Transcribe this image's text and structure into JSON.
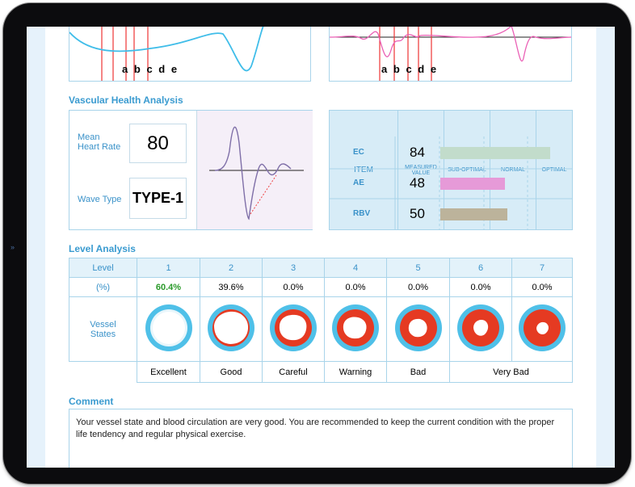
{
  "waveform_markers": [
    "a",
    "b",
    "c",
    "d",
    "e"
  ],
  "vascular": {
    "title": "Vascular Health Analysis",
    "mean_label": "Mean\nHeart Rate",
    "mean_value": "80",
    "wave_label": "Wave Type",
    "wave_value": "TYPE-1"
  },
  "items_table": {
    "headers": [
      "ITEM",
      "MEASURED VALUE",
      "SUB-OPTIMAL",
      "NORMAL",
      "OPTIMAL"
    ],
    "rows": [
      {
        "item": "EC",
        "value": "84",
        "color": "#c2dccb",
        "level_fraction": 0.97
      },
      {
        "item": "AE",
        "value": "48",
        "color": "#e69ad8",
        "level_fraction": 0.57
      },
      {
        "item": "RBV",
        "value": "50",
        "color": "#bcb39b",
        "level_fraction": 0.59
      }
    ]
  },
  "level": {
    "title": "Level Analysis",
    "row_labels": {
      "level": "Level",
      "pct": "(%)",
      "vessel": "Vessel\nStates"
    },
    "levels": [
      "1",
      "2",
      "3",
      "4",
      "5",
      "6",
      "7"
    ],
    "percents": [
      "60.4%",
      "39.6%",
      "0.0%",
      "0.0%",
      "0.0%",
      "0.0%",
      "0.0%"
    ],
    "highlight_color": "#2a9a2a",
    "states": [
      "Excellent",
      "Good",
      "Careful",
      "Warning",
      "Bad",
      "Very Bad"
    ]
  },
  "comment": {
    "title": "Comment",
    "text": "Your vessel state and blood circulation are very good. You are recommended to keep the current condition with the proper life tendency and regular physical exercise."
  }
}
